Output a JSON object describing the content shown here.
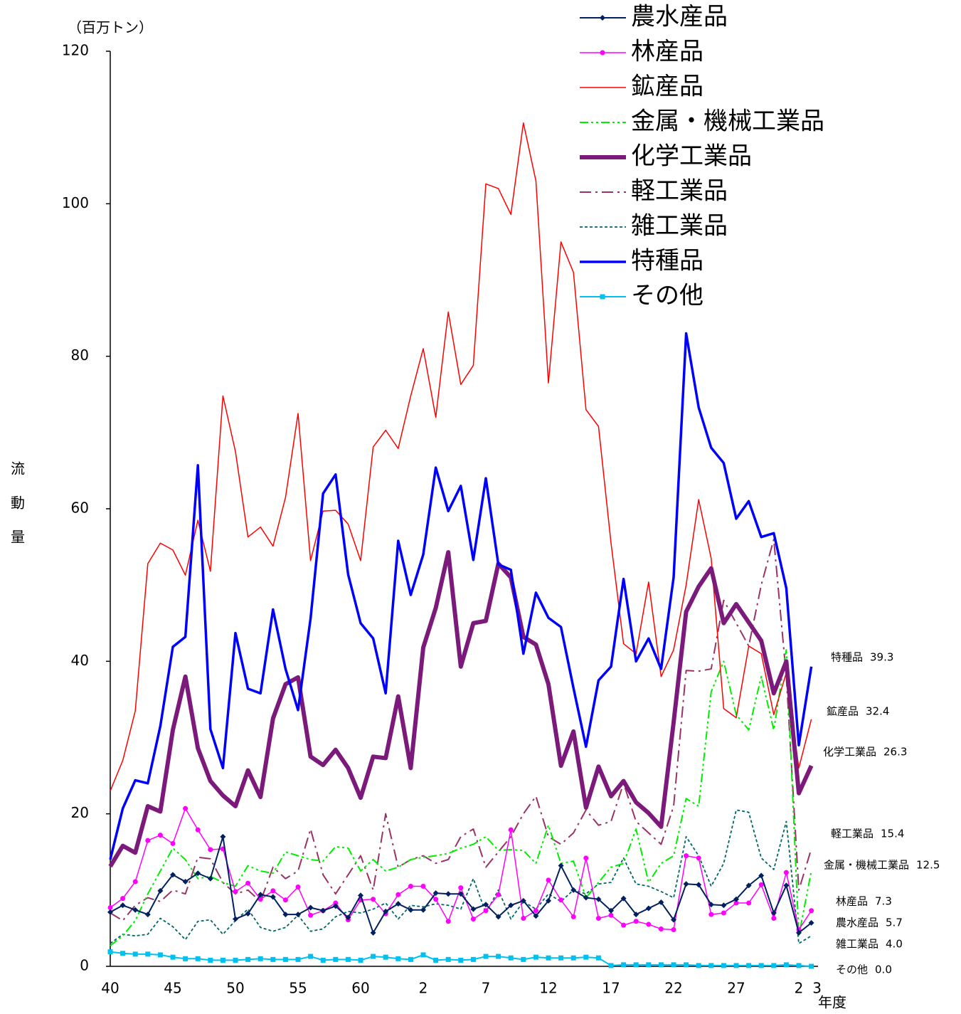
{
  "chart_data": {
    "type": "line",
    "y_unit": "（百万トン）",
    "y_axis_label": "流動量",
    "x_axis_label": "年度",
    "categories": [
      "40",
      null,
      null,
      null,
      null,
      "45",
      null,
      null,
      null,
      null,
      "50",
      null,
      null,
      null,
      null,
      "55",
      null,
      null,
      null,
      null,
      "60",
      null,
      null,
      null,
      null,
      "2",
      null,
      null,
      null,
      null,
      "7",
      null,
      null,
      null,
      null,
      "12",
      null,
      null,
      null,
      null,
      "17",
      null,
      null,
      null,
      null,
      "22",
      null,
      null,
      null,
      null,
      "27",
      null,
      null,
      null,
      null,
      "2",
      "3"
    ],
    "ylim": [
      0,
      120
    ],
    "yticks": [
      0,
      20,
      40,
      60,
      80,
      100,
      120
    ],
    "grid": false,
    "legend": "top-right",
    "series": [
      {
        "name": "農水産品",
        "color": "#002060",
        "marker": "diamond",
        "dash": "solid",
        "values": [
          7.1,
          8,
          7.4,
          6.8,
          9.9,
          12,
          11.1,
          12.2,
          11.5,
          17,
          6.2,
          6.9,
          9.4,
          9.1,
          6.8,
          6.8,
          7.7,
          7.3,
          7.9,
          6.4,
          9.3,
          4.4,
          7.2,
          8.2,
          7.4,
          7.4,
          9.6,
          9.5,
          9.5,
          7.5,
          8.1,
          6.5,
          8,
          8.6,
          6.6,
          8.6,
          13.2,
          10,
          9,
          8.8,
          7.3,
          8.9,
          6.8,
          7.6,
          8.4,
          6.1,
          10.8,
          10.7,
          8.1,
          8,
          8.8,
          10.6,
          11.9,
          7,
          10.6,
          4.4,
          5.7
        ]
      },
      {
        "name": "林産品",
        "color": "#ff00ff",
        "marker": "circle",
        "dash": "solid",
        "values": [
          7.7,
          8.9,
          11.1,
          16.5,
          17.2,
          16.1,
          20.7,
          17.9,
          15.3,
          15.4,
          9.8,
          10.9,
          8.8,
          9.9,
          8.7,
          10.4,
          6.7,
          7.3,
          8.3,
          6.1,
          8.7,
          8.8,
          6.9,
          9.4,
          10.5,
          10.5,
          8.8,
          5.9,
          10.3,
          6.2,
          7.3,
          9.4,
          17.9,
          6.3,
          7.3,
          11.3,
          8.7,
          6.5,
          14.2,
          6.3,
          6.7,
          5.4,
          5.9,
          5.5,
          4.9,
          4.8,
          14.5,
          14.2,
          6.8,
          7,
          8.3,
          8.3,
          10.7,
          6.3,
          12.3,
          4.8,
          7.3
        ]
      },
      {
        "name": "鉱産品",
        "color": "#ff0000",
        "marker": "none",
        "dash": "solid",
        "values": [
          23,
          27,
          33.5,
          52.8,
          55.5,
          54.6,
          51.3,
          58.5,
          51.8,
          74.8,
          67.5,
          56.3,
          57.6,
          55.1,
          61.5,
          72.5,
          53.2,
          59.7,
          59.8,
          58,
          53.2,
          68.1,
          70.3,
          67.9,
          74.8,
          81,
          72,
          85.8,
          76.3,
          78.8,
          102.6,
          102,
          98.6,
          110.6,
          103,
          76.5,
          95,
          91,
          73,
          70.8,
          55.5,
          42.3,
          41,
          50.4,
          38,
          41.5,
          50,
          61.2,
          53.5,
          33.8,
          32.6,
          42,
          41,
          33,
          38.5,
          26,
          32.4
        ]
      },
      {
        "name": "金属・機械工業品",
        "color": "#00ee00",
        "marker": "none",
        "dash": "dash-dot-dot",
        "values": [
          2.7,
          4,
          6,
          9.5,
          12.5,
          15.5,
          14,
          11.5,
          11.8,
          11,
          10.5,
          13.2,
          12.5,
          12.2,
          15,
          14.5,
          14,
          13.8,
          15.7,
          15.5,
          12.5,
          14,
          12.5,
          13,
          14,
          14.3,
          14.5,
          14.8,
          15.5,
          16,
          17,
          15.2,
          15.3,
          15.2,
          13.5,
          18.5,
          13.5,
          13.8,
          9,
          11,
          13,
          13.5,
          18,
          11,
          13.5,
          14.5,
          22,
          21,
          36,
          40,
          33,
          31,
          38,
          31,
          41.5,
          4,
          12.5
        ]
      },
      {
        "name": "化学工業品",
        "color": "#7b1a7b",
        "marker": "none",
        "dash": "solid",
        "values": [
          13.1,
          15.8,
          14.9,
          21,
          20.3,
          31,
          38,
          28.6,
          24.3,
          22.4,
          21,
          25.7,
          22.2,
          32.5,
          37,
          37.9,
          27.5,
          26.4,
          28.4,
          26,
          22.1,
          27.5,
          27.3,
          35.4,
          26,
          41.8,
          47,
          54.3,
          39.3,
          45,
          45.3,
          52.8,
          51,
          43.2,
          42.2,
          37,
          26.3,
          30.8,
          20.8,
          26.2,
          22.3,
          24.3,
          21.5,
          20.1,
          18.3,
          32,
          46.5,
          49.8,
          52.2,
          45,
          47.5,
          45.1,
          42.7,
          35.8,
          40,
          22.7,
          26.3
        ]
      },
      {
        "name": "軽工業品",
        "color": "#993366",
        "marker": "none",
        "dash": "dash-dot",
        "values": [
          7,
          6,
          8,
          9,
          8.5,
          10,
          9.5,
          14.3,
          14.1,
          11,
          9.5,
          10,
          8.5,
          13,
          11.5,
          12.5,
          18,
          12,
          9.5,
          12,
          14.5,
          10,
          20,
          13,
          14,
          14.5,
          13.5,
          14,
          17,
          18,
          13,
          15,
          17,
          20,
          22.3,
          17,
          16,
          17.5,
          20.5,
          18.5,
          19,
          24,
          19,
          17.5,
          16,
          21,
          38.8,
          38.7,
          39,
          48,
          45,
          42,
          50,
          56,
          38,
          10,
          15.4
        ]
      },
      {
        "name": "雑工業品",
        "color": "#006666",
        "marker": "none",
        "dash": "dash",
        "values": [
          3,
          4.2,
          4,
          4.2,
          6.3,
          5.2,
          3.5,
          5.9,
          6.1,
          4.2,
          6,
          7.5,
          5.1,
          4.6,
          5.1,
          6.7,
          4.6,
          4.9,
          6.5,
          7.2,
          7,
          7.5,
          8.3,
          6.2,
          8,
          7.8,
          8.2,
          8,
          7.5,
          11.5,
          7,
          10,
          6.2,
          8.5,
          7.5,
          9.5,
          8.5,
          10,
          9.5,
          10.8,
          11,
          14.2,
          10.8,
          10.5,
          9.8,
          9,
          17,
          14.5,
          10.5,
          13.5,
          20.5,
          20.2,
          14.2,
          12.7,
          19,
          3,
          4
        ],
        "value_labels": [
          null,
          null,
          null,
          null,
          null,
          null,
          null,
          null,
          null,
          null,
          null,
          null,
          null,
          null,
          null,
          null,
          null,
          null,
          null,
          null,
          null,
          null,
          null,
          null,
          null,
          null,
          null,
          null,
          null,
          null,
          null,
          null,
          null,
          null,
          null,
          null,
          null,
          null,
          null,
          null,
          null,
          null,
          null,
          null,
          null,
          null,
          null,
          null,
          null,
          null,
          null,
          null,
          null,
          null,
          null,
          null,
          "4.0"
        ]
      },
      {
        "name": "特種品",
        "color": "#0000ff",
        "marker": "none",
        "dash": "solid",
        "values": [
          14,
          20.7,
          24.4,
          24,
          31.5,
          41.9,
          43.2,
          65.7,
          31.1,
          26,
          43.7,
          36.4,
          35.8,
          46.8,
          39,
          33.6,
          45.6,
          62,
          64.5,
          51.4,
          45,
          43,
          35.8,
          55.8,
          48.7,
          54,
          65.4,
          59.7,
          63,
          53.3,
          64,
          52.7,
          52,
          41,
          49,
          45.7,
          44.5,
          36.5,
          28.8,
          37.5,
          39.3,
          50.8,
          40,
          43,
          39,
          51,
          83,
          73.3,
          68,
          66,
          58.7,
          61,
          56.3,
          56.8,
          49.6,
          29,
          39.3
        ]
      },
      {
        "name": "その他",
        "color": "#00c0f0",
        "marker": "square",
        "dash": "solid",
        "values": [
          1.9,
          1.7,
          1.6,
          1.6,
          1.5,
          1.2,
          1,
          1,
          0.8,
          0.8,
          0.8,
          0.9,
          1,
          0.9,
          0.9,
          0.9,
          1.3,
          0.8,
          0.9,
          0.9,
          0.8,
          1.3,
          1.2,
          1,
          0.9,
          1.5,
          0.8,
          0.9,
          0.8,
          0.9,
          1.3,
          1.3,
          1.1,
          0.9,
          1.2,
          1.1,
          1.1,
          1.1,
          1.2,
          1.1,
          0.1,
          0.2,
          0.2,
          0.2,
          0.2,
          0.2,
          0.2,
          0.1,
          0.1,
          0.1,
          0.1,
          0.1,
          0.1,
          0.1,
          0.2,
          0.1,
          0
        ],
        "value_labels": [
          null,
          null,
          null,
          null,
          null,
          null,
          null,
          null,
          null,
          null,
          null,
          null,
          null,
          null,
          null,
          null,
          null,
          null,
          null,
          null,
          null,
          null,
          null,
          null,
          null,
          null,
          null,
          null,
          null,
          null,
          null,
          null,
          null,
          null,
          null,
          null,
          null,
          null,
          null,
          null,
          null,
          null,
          null,
          null,
          null,
          null,
          null,
          null,
          null,
          null,
          null,
          null,
          null,
          null,
          null,
          null,
          "0.0"
        ]
      }
    ]
  }
}
